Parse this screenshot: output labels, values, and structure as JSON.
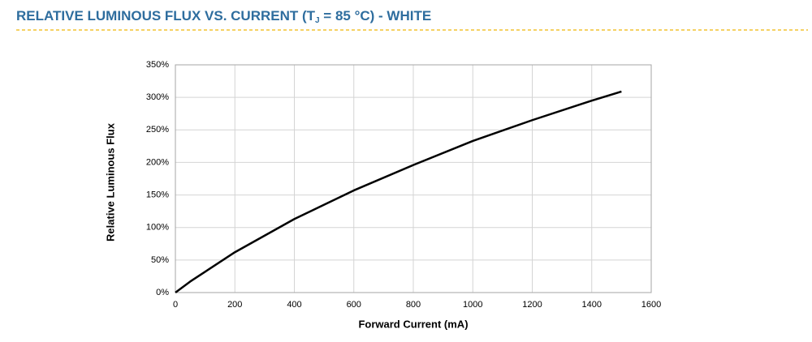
{
  "chart_data": {
    "type": "line",
    "title": [
      "RELATIVE LUMINOUS FLUX VS. CURRENT (T",
      "J",
      " = 85 °C) - WHITE"
    ],
    "x_label": "Forward Current (mA)",
    "y_label": "Relative Luminous Flux",
    "x": [
      0,
      50,
      100,
      200,
      400,
      600,
      800,
      1000,
      1200,
      1400,
      1500
    ],
    "values": [
      0,
      17,
      32,
      62,
      113,
      157,
      196,
      233,
      265,
      295,
      309
    ],
    "color": "#000000",
    "xlim": [
      0,
      1600
    ],
    "xticks": [
      0,
      200,
      400,
      600,
      800,
      1000,
      1200,
      1400,
      1600
    ],
    "ylim": [
      0,
      350
    ],
    "yticks": [
      {
        "value": 0,
        "label": "0%"
      },
      {
        "value": 50,
        "label": "50%"
      },
      {
        "value": 100,
        "label": "100%"
      },
      {
        "value": 150,
        "label": "150%"
      },
      {
        "value": 200,
        "label": "200%"
      },
      {
        "value": 250,
        "label": "250%"
      },
      {
        "value": 300,
        "label": "300%"
      },
      {
        "value": 350,
        "label": "350%"
      }
    ],
    "grid": true
  }
}
